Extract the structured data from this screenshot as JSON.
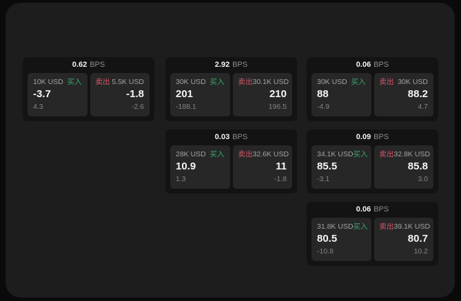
{
  "unit_label": "BPS",
  "labels": {
    "buy": "买入",
    "sell": "卖出"
  },
  "colors": {
    "buy": "#3aa76a",
    "sell": "#d25568"
  },
  "cards": [
    {
      "spread": "0.62",
      "buy": {
        "volume": "10K USD",
        "price": "-3.7",
        "change": "4.3"
      },
      "sell": {
        "volume": "5.5K USD",
        "price": "-1.8",
        "change": "-2.6"
      }
    },
    {
      "spread": "2.92",
      "buy": {
        "volume": "30K USD",
        "price": "201",
        "change": "-188.1"
      },
      "sell": {
        "volume": "30.1K USD",
        "price": "210",
        "change": "196.5"
      }
    },
    {
      "spread": "0.06",
      "buy": {
        "volume": "30K USD",
        "price": "88",
        "change": "-4.9"
      },
      "sell": {
        "volume": "30K USD",
        "price": "88.2",
        "change": "4.7"
      }
    },
    {
      "spread": "0.03",
      "buy": {
        "volume": "28K USD",
        "price": "10.9",
        "change": "1.3"
      },
      "sell": {
        "volume": "32.6K USD",
        "price": "11",
        "change": "-1.8"
      }
    },
    {
      "spread": "0.09",
      "buy": {
        "volume": "34.1K USD",
        "price": "85.5",
        "change": "-3.1"
      },
      "sell": {
        "volume": "32.8K USD",
        "price": "85.8",
        "change": "3.0"
      }
    },
    {
      "spread": "0.06",
      "buy": {
        "volume": "31.8K USD",
        "price": "80.5",
        "change": "-10.8"
      },
      "sell": {
        "volume": "39.1K USD",
        "price": "80.7",
        "change": "10.2"
      }
    }
  ]
}
